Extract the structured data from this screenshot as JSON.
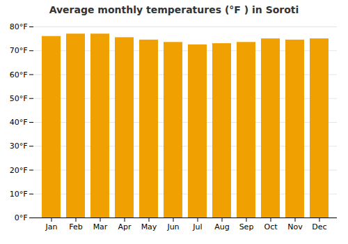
{
  "chart_data": {
    "type": "bar",
    "title": "Average monthly temperatures (°F ) in Soroti",
    "categories": [
      "Jan",
      "Feb",
      "Mar",
      "Apr",
      "May",
      "Jun",
      "Jul",
      "Aug",
      "Sep",
      "Oct",
      "Nov",
      "Dec"
    ],
    "values": [
      76,
      77,
      77,
      75.5,
      74.5,
      73.5,
      72.5,
      73,
      73.5,
      75,
      74.5,
      75
    ],
    "color": "#F0A000",
    "ylim": [
      0,
      80
    ],
    "yticks": [
      {
        "value": 0,
        "label": "0°F"
      },
      {
        "value": 10,
        "label": "10°F"
      },
      {
        "value": 20,
        "label": "20°F"
      },
      {
        "value": 30,
        "label": "30°F"
      },
      {
        "value": 40,
        "label": "40°F"
      },
      {
        "value": 50,
        "label": "50°F"
      },
      {
        "value": 60,
        "label": "60°F"
      },
      {
        "value": 70,
        "label": "70°F"
      },
      {
        "value": 80,
        "label": "80°F"
      }
    ],
    "grid": true
  }
}
